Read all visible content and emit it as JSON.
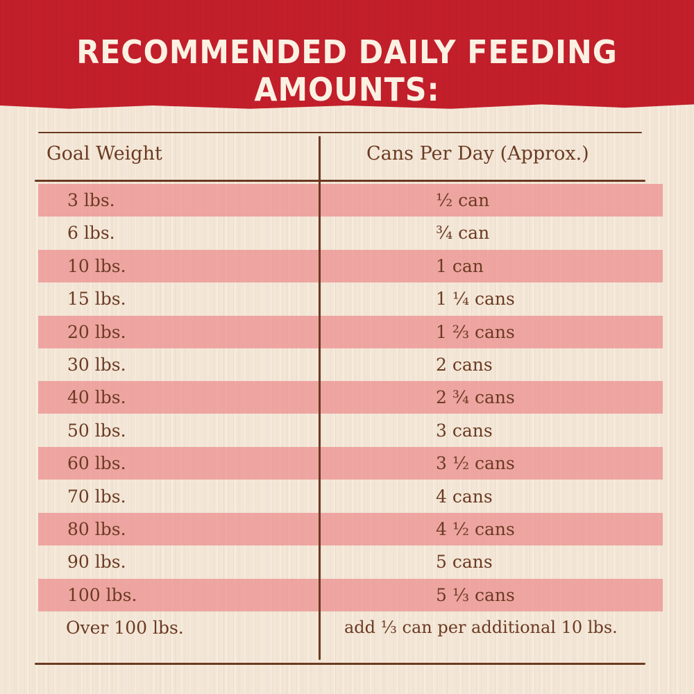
{
  "title": "RECOMMENDED DAILY FEEDING AMOUNTS:",
  "table": {
    "headers": [
      "Goal Weight",
      "Cans Per Day (Approx.)"
    ],
    "rows": [
      {
        "weight": "3 lbs.",
        "cans": "½ can"
      },
      {
        "weight": "6 lbs.",
        "cans": "¾ can"
      },
      {
        "weight": "10 lbs.",
        "cans": "1 can"
      },
      {
        "weight": "15 lbs.",
        "cans": "1 ¼ cans"
      },
      {
        "weight": "20 lbs.",
        "cans": "1 ⅔ cans"
      },
      {
        "weight": "30 lbs.",
        "cans": "2 cans"
      },
      {
        "weight": "40 lbs.",
        "cans": "2 ¾ cans"
      },
      {
        "weight": "50 lbs.",
        "cans": "3 cans"
      },
      {
        "weight": "60 lbs.",
        "cans": "3 ½ cans"
      },
      {
        "weight": "70 lbs.",
        "cans": "4 cans"
      },
      {
        "weight": "80 lbs.",
        "cans": "4 ½ cans"
      },
      {
        "weight": "90 lbs.",
        "cans": "5 cans"
      },
      {
        "weight": "100 lbs.",
        "cans": "5 ⅓ cans"
      },
      {
        "weight": "Over 100 lbs.",
        "cans": "add ⅓ can per additional 10 lbs."
      }
    ]
  },
  "colors": {
    "banner": "#c21f2b",
    "banner_text": "#fbf1e3",
    "stripe": "#ec8c8c",
    "text": "#6b3a22",
    "background": "#f3e6d6"
  }
}
